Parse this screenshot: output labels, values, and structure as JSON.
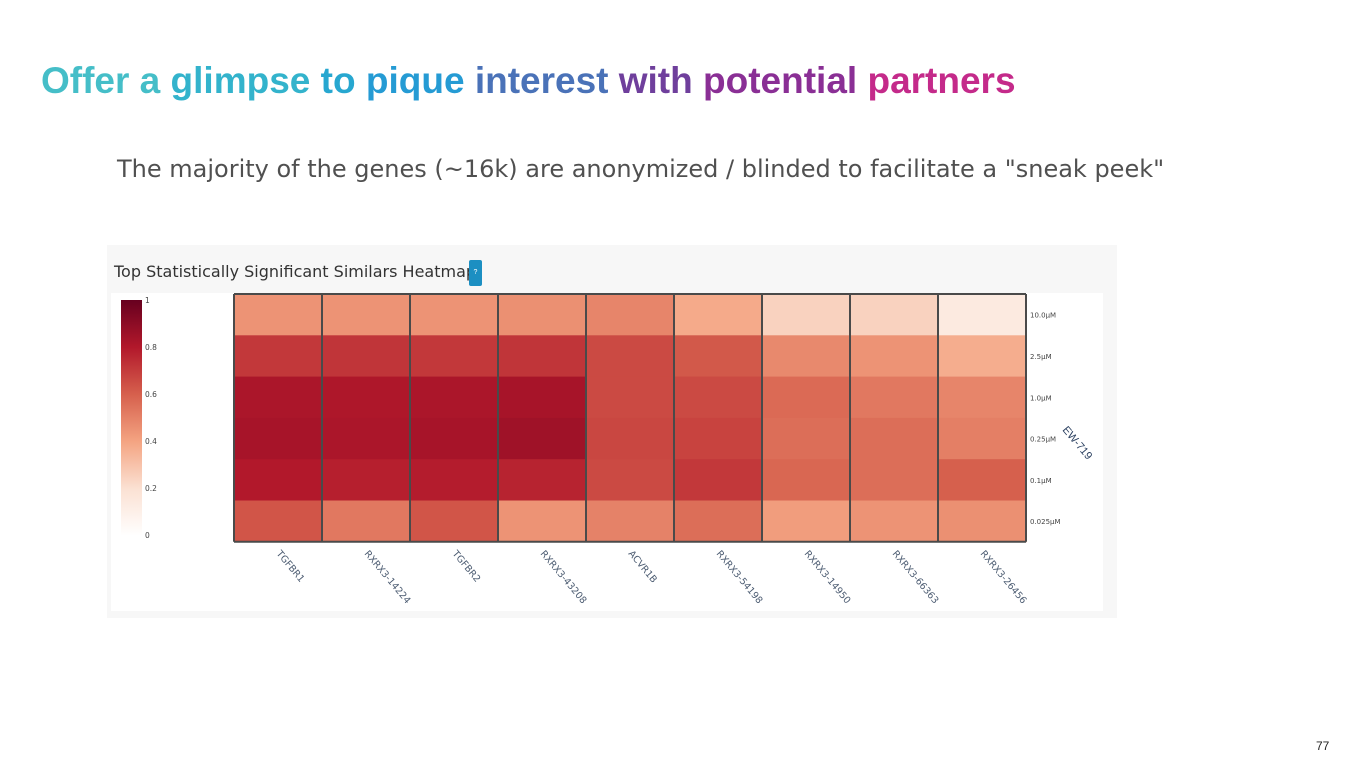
{
  "slide": {
    "title_parts": [
      {
        "text": "Offer a ",
        "color": "#45bec8"
      },
      {
        "text": "glimpse ",
        "color": "#33b3cc"
      },
      {
        "text": "to ",
        "color": "#27a7d0"
      },
      {
        "text": "pique ",
        "color": "#259bd4"
      },
      {
        "text": "interest ",
        "color": "#4a72b8"
      },
      {
        "text": "with ",
        "color": "#6f3f9c"
      },
      {
        "text": "potential ",
        "color": "#8a2f95"
      },
      {
        "text": "partners",
        "color": "#c42a8a"
      }
    ],
    "subtitle": "The majority of the genes (~16k) are anonymized / blinded to facilitate a \"sneak peek\"",
    "page_number": "77"
  },
  "panel": {
    "title": "Top Statistically Significant Similars Heatmap",
    "help_label": "?"
  },
  "chart_data": {
    "type": "heatmap",
    "title": "Top Statistically Significant Similars Heatmap",
    "x": [
      "TGFBR1",
      "RXRX3-14224",
      "TGFBR2",
      "RXRX3-43208",
      "ACVR1B",
      "RXRX3-54198",
      "RXRX3-14950",
      "RXRX3-66363",
      "RXRX3-26456"
    ],
    "y": [
      "10.0μM",
      "2.5μM",
      "1.0μM",
      "0.25μM",
      "0.1μM",
      "0.025μM"
    ],
    "y_group_label": "EW-719",
    "colorscale": [
      "#ffffff",
      "#fbe1d3",
      "#f4a482",
      "#d6604d",
      "#b2182b",
      "#67001f"
    ],
    "color_range": [
      0,
      1
    ],
    "colorbar_ticks": [
      "1",
      "0.8",
      "0.6",
      "0.4",
      "0.2",
      "0"
    ],
    "values": [
      [
        0.45,
        0.45,
        0.45,
        0.46,
        0.49,
        0.38,
        0.25,
        0.25,
        0.14
      ],
      [
        0.71,
        0.72,
        0.71,
        0.72,
        0.66,
        0.62,
        0.48,
        0.45,
        0.37
      ],
      [
        0.82,
        0.81,
        0.82,
        0.83,
        0.66,
        0.66,
        0.57,
        0.53,
        0.49
      ],
      [
        0.83,
        0.82,
        0.83,
        0.85,
        0.67,
        0.68,
        0.56,
        0.56,
        0.51
      ],
      [
        0.8,
        0.78,
        0.79,
        0.77,
        0.66,
        0.71,
        0.58,
        0.56,
        0.6
      ],
      [
        0.63,
        0.53,
        0.63,
        0.45,
        0.5,
        0.56,
        0.42,
        0.45,
        0.46
      ]
    ]
  }
}
